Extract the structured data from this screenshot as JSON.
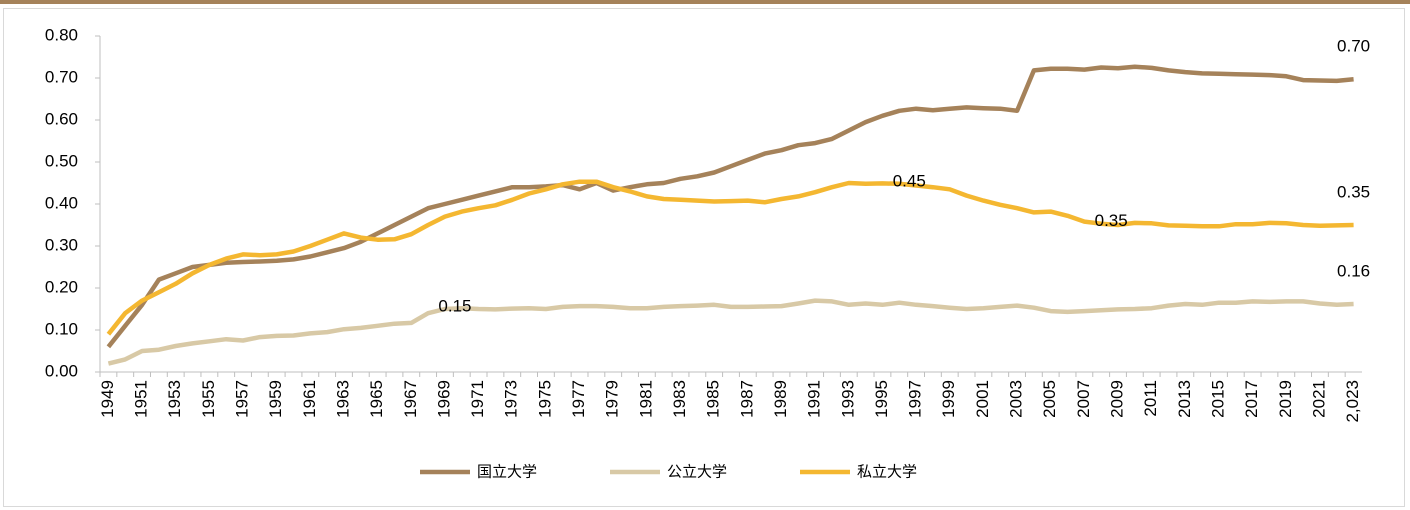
{
  "chart_data": {
    "type": "line",
    "categories": [
      "1949",
      null,
      "1951",
      null,
      "1953",
      null,
      "1955",
      null,
      "1957",
      null,
      "1959",
      null,
      "1961",
      null,
      "1963",
      null,
      "1965",
      null,
      "1967",
      null,
      "1969",
      null,
      "1971",
      null,
      "1973",
      null,
      "1975",
      null,
      "1977",
      null,
      "1979",
      null,
      "1981",
      null,
      "1983",
      null,
      "1985",
      null,
      "1987",
      null,
      "1989",
      null,
      "1991",
      null,
      "1993",
      null,
      "1995",
      null,
      "1997",
      null,
      "1999",
      null,
      "2001",
      null,
      "2003",
      null,
      "2005",
      null,
      "2007",
      null,
      "2009",
      null,
      "2011",
      null,
      "2013",
      null,
      "2015",
      null,
      "2017",
      null,
      "2019",
      null,
      "2021",
      null,
      "2,023"
    ],
    "series": [
      {
        "name": "国立大学",
        "color": "#a5825a",
        "values": [
          0.06,
          0.11,
          0.16,
          0.22,
          0.235,
          0.25,
          0.255,
          0.26,
          0.262,
          0.263,
          0.265,
          0.268,
          0.275,
          0.285,
          0.295,
          0.31,
          0.33,
          0.35,
          0.37,
          0.39,
          0.4,
          0.41,
          0.42,
          0.43,
          0.44,
          0.44,
          0.442,
          0.445,
          0.435,
          0.45,
          0.432,
          0.44,
          0.447,
          0.45,
          0.46,
          0.466,
          0.475,
          0.49,
          0.505,
          0.52,
          0.528,
          0.54,
          0.545,
          0.555,
          0.575,
          0.595,
          0.61,
          0.622,
          0.627,
          0.623,
          0.627,
          0.63,
          0.628,
          0.627,
          0.622,
          0.718,
          0.722,
          0.722,
          0.72,
          0.725,
          0.723,
          0.727,
          0.724,
          0.718,
          0.714,
          0.711,
          0.71,
          0.709,
          0.708,
          0.707,
          0.704,
          0.695,
          0.694,
          0.693,
          0.697
        ],
        "value_labels": [
          null,
          null,
          null,
          null,
          null,
          null,
          null,
          null,
          null,
          null,
          null,
          null,
          null,
          null,
          null,
          null,
          null,
          null,
          null,
          null,
          null,
          null,
          null,
          null,
          null,
          null,
          null,
          null,
          null,
          null,
          null,
          null,
          null,
          null,
          null,
          null,
          null,
          null,
          null,
          null,
          null,
          null,
          null,
          null,
          null,
          null,
          null,
          null,
          null,
          null,
          null,
          null,
          null,
          null,
          null,
          null,
          null,
          null,
          null,
          null,
          null,
          null,
          null,
          null,
          null,
          null,
          null,
          null,
          null,
          null,
          null,
          null,
          null,
          null,
          "0.70"
        ]
      },
      {
        "name": "公立大学",
        "color": "#d8c9a6",
        "values": [
          0.02,
          0.03,
          0.05,
          0.053,
          0.062,
          0.068,
          0.073,
          0.078,
          0.075,
          0.083,
          0.086,
          0.087,
          0.092,
          0.095,
          0.102,
          0.105,
          0.11,
          0.115,
          0.117,
          0.14,
          0.15,
          0.152,
          0.15,
          0.149,
          0.151,
          0.152,
          0.15,
          0.155,
          0.157,
          0.157,
          0.155,
          0.152,
          0.152,
          0.155,
          0.157,
          0.158,
          0.16,
          0.155,
          0.155,
          0.156,
          0.157,
          0.163,
          0.17,
          0.168,
          0.16,
          0.163,
          0.16,
          0.165,
          0.16,
          0.157,
          0.153,
          0.15,
          0.152,
          0.155,
          0.158,
          0.153,
          0.145,
          0.143,
          0.145,
          0.147,
          0.149,
          0.15,
          0.152,
          0.158,
          0.162,
          0.16,
          0.165,
          0.165,
          0.168,
          0.167,
          0.168,
          0.168,
          0.163,
          0.16,
          0.162
        ],
        "value_labels": [
          null,
          null,
          null,
          null,
          null,
          null,
          null,
          null,
          null,
          null,
          null,
          null,
          null,
          null,
          null,
          null,
          null,
          null,
          null,
          null,
          "0.15",
          null,
          null,
          null,
          null,
          null,
          null,
          null,
          null,
          null,
          null,
          null,
          null,
          null,
          null,
          null,
          null,
          null,
          null,
          null,
          null,
          null,
          null,
          null,
          null,
          null,
          null,
          null,
          null,
          null,
          null,
          null,
          null,
          null,
          null,
          null,
          null,
          null,
          null,
          null,
          null,
          null,
          null,
          null,
          null,
          null,
          null,
          null,
          null,
          null,
          null,
          null,
          null,
          null,
          "0.16"
        ]
      },
      {
        "name": "私立大学",
        "color": "#f4b731",
        "values": [
          0.09,
          0.14,
          0.17,
          0.19,
          0.21,
          0.235,
          0.255,
          0.27,
          0.28,
          0.278,
          0.28,
          0.287,
          0.3,
          0.315,
          0.33,
          0.32,
          0.315,
          0.316,
          0.328,
          0.35,
          0.37,
          0.382,
          0.39,
          0.397,
          0.41,
          0.425,
          0.435,
          0.447,
          0.453,
          0.453,
          0.44,
          0.43,
          0.418,
          0.412,
          0.41,
          0.408,
          0.406,
          0.407,
          0.408,
          0.404,
          0.412,
          0.418,
          0.428,
          0.44,
          0.45,
          0.448,
          0.449,
          0.448,
          0.444,
          0.44,
          0.435,
          0.42,
          0.408,
          0.398,
          0.39,
          0.38,
          0.382,
          0.372,
          0.358,
          0.353,
          0.35,
          0.355,
          0.354,
          0.349,
          0.348,
          0.347,
          0.347,
          0.352,
          0.352,
          0.355,
          0.354,
          0.35,
          0.348,
          0.349,
          0.35
        ],
        "value_labels": [
          null,
          null,
          null,
          null,
          null,
          null,
          null,
          null,
          null,
          null,
          null,
          null,
          null,
          null,
          null,
          null,
          null,
          null,
          null,
          null,
          null,
          null,
          null,
          null,
          null,
          null,
          null,
          null,
          null,
          null,
          null,
          null,
          null,
          null,
          null,
          null,
          null,
          null,
          null,
          null,
          null,
          null,
          null,
          null,
          null,
          null,
          null,
          "0.45",
          null,
          null,
          null,
          null,
          null,
          null,
          null,
          null,
          null,
          null,
          null,
          "0.35",
          null,
          null,
          null,
          null,
          null,
          null,
          null,
          null,
          null,
          null,
          null,
          null,
          null,
          null,
          "0.35"
        ]
      }
    ],
    "ylim": [
      0,
      0.8
    ],
    "yticks": [
      {
        "value": 0,
        "label": "0.00"
      },
      {
        "value": 0.1,
        "label": "0.10"
      },
      {
        "value": 0.2,
        "label": "0.20"
      },
      {
        "value": 0.3,
        "label": "0.30"
      },
      {
        "value": 0.4,
        "label": "0.40"
      },
      {
        "value": 0.5,
        "label": "0.50"
      },
      {
        "value": 0.6,
        "label": "0.60"
      },
      {
        "value": 0.7,
        "label": "0.70"
      },
      {
        "value": 0.8,
        "label": "0.80"
      }
    ],
    "legend": "bottom"
  }
}
